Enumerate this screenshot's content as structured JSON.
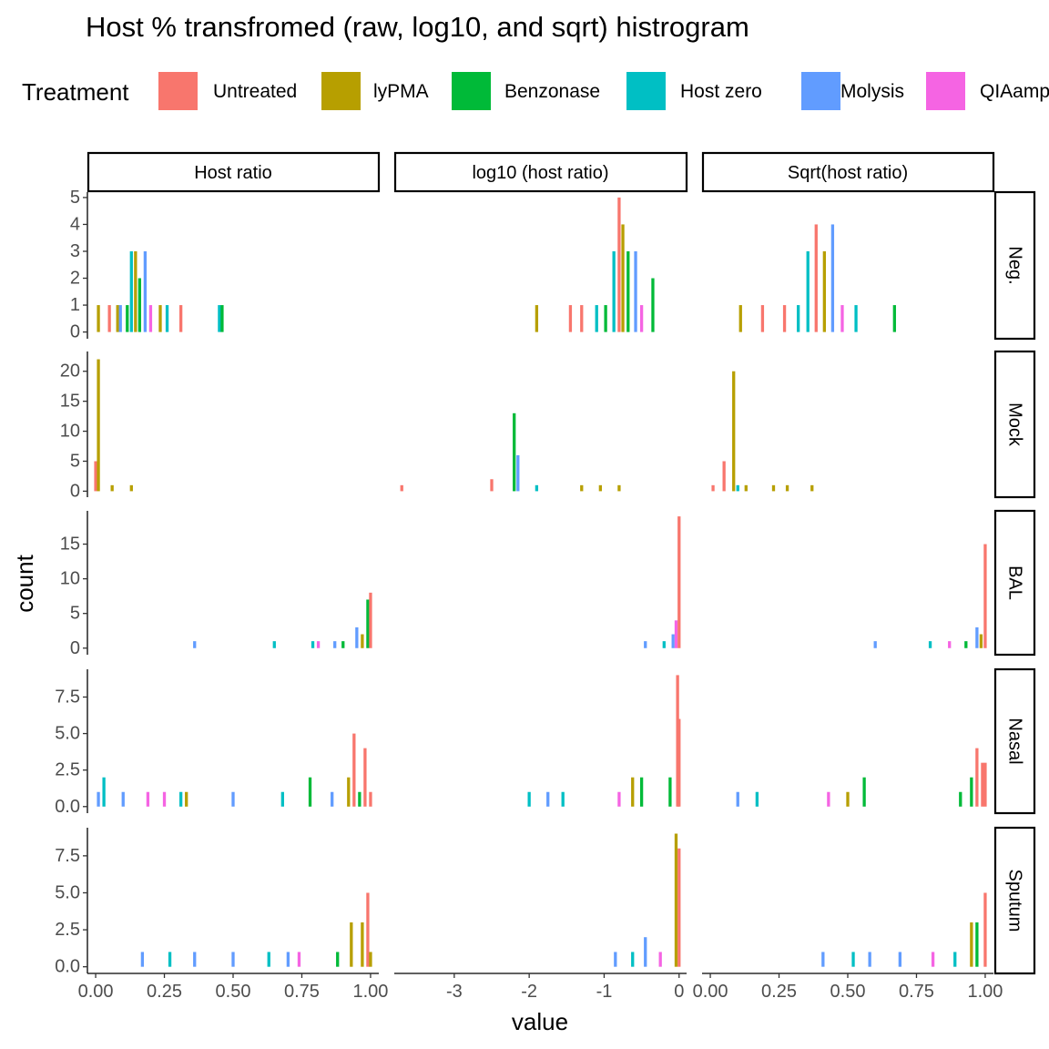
{
  "chart_data": {
    "type": "bar",
    "title": "Host % transfromed (raw, log10, and sqrt) histrogram",
    "xlabel": "value",
    "ylabel": "count",
    "legend": {
      "title": "Treatment",
      "placement": "top",
      "items": [
        {
          "name": "Untreated",
          "color": "#F8766D"
        },
        {
          "name": "lyPMA",
          "color": "#B79F00"
        },
        {
          "name": "Benzonase",
          "color": "#00BA38"
        },
        {
          "name": "Host zero",
          "color": "#00BFC4"
        },
        {
          "name": "Molysis",
          "color": "#619CFF"
        },
        {
          "name": "QIAamp",
          "color": "#F564E3"
        }
      ]
    },
    "facet_columns": [
      {
        "label": "Host ratio",
        "xlim": [
          -0.03,
          1.03
        ],
        "xticks": [
          0,
          0.25,
          0.5,
          0.75,
          1
        ],
        "xtick_labels": [
          "0.00",
          "0.25",
          "0.50",
          "0.75",
          "1.00"
        ]
      },
      {
        "label": "log10 (host ratio)",
        "xlim": [
          -3.8,
          0.1
        ],
        "xticks": [
          -3,
          -2,
          -1,
          0
        ],
        "xtick_labels": [
          "-3",
          "-2",
          "-1",
          "0"
        ]
      },
      {
        "label": "Sqrt(host ratio)",
        "xlim": [
          -0.03,
          1.03
        ],
        "xticks": [
          0,
          0.25,
          0.5,
          0.75,
          1
        ],
        "xtick_labels": [
          "0.00",
          "0.25",
          "0.50",
          "0.75",
          "1.00"
        ]
      }
    ],
    "facet_rows": [
      {
        "label": "Neg.",
        "ylim": [
          -0.25,
          5.2
        ],
        "yticks": [
          0,
          1,
          2,
          3,
          4,
          5
        ],
        "ytick_labels": [
          "0",
          "1",
          "2",
          "3",
          "4",
          "5"
        ]
      },
      {
        "label": "Mock",
        "ylim": [
          -1,
          23.3
        ],
        "yticks": [
          0,
          5,
          10,
          15,
          20
        ],
        "ytick_labels": [
          "0",
          "5",
          "10",
          "15",
          "20"
        ]
      },
      {
        "label": "BAL",
        "ylim": [
          -0.95,
          19.8
        ],
        "yticks": [
          0,
          5,
          10,
          15
        ],
        "ytick_labels": [
          "0",
          "5",
          "10",
          "15"
        ]
      },
      {
        "label": "Nasal",
        "ylim": [
          -0.45,
          9.4
        ],
        "yticks": [
          0,
          2.5,
          5,
          7.5
        ],
        "ytick_labels": [
          "0.0",
          "2.5",
          "5.0",
          "7.5"
        ]
      },
      {
        "label": "Sputum",
        "ylim": [
          -0.45,
          9.4
        ],
        "yticks": [
          0,
          2.5,
          5,
          7.5
        ],
        "ytick_labels": [
          "0.0",
          "2.5",
          "5.0",
          "7.5"
        ]
      }
    ],
    "bins": [
      {
        "row": 0,
        "col": 0,
        "series": 1,
        "x": 0.01,
        "count": 1
      },
      {
        "row": 0,
        "col": 0,
        "series": 0,
        "x": 0.05,
        "count": 1
      },
      {
        "row": 0,
        "col": 0,
        "series": 1,
        "x": 0.08,
        "count": 1
      },
      {
        "row": 0,
        "col": 0,
        "series": 4,
        "x": 0.09,
        "count": 1
      },
      {
        "row": 0,
        "col": 0,
        "series": 2,
        "x": 0.115,
        "count": 1
      },
      {
        "row": 0,
        "col": 0,
        "series": 3,
        "x": 0.13,
        "count": 3
      },
      {
        "row": 0,
        "col": 0,
        "series": 1,
        "x": 0.145,
        "count": 3
      },
      {
        "row": 0,
        "col": 0,
        "series": 2,
        "x": 0.16,
        "count": 2
      },
      {
        "row": 0,
        "col": 0,
        "series": 4,
        "x": 0.18,
        "count": 3
      },
      {
        "row": 0,
        "col": 0,
        "series": 5,
        "x": 0.2,
        "count": 1
      },
      {
        "row": 0,
        "col": 0,
        "series": 1,
        "x": 0.235,
        "count": 1
      },
      {
        "row": 0,
        "col": 0,
        "series": 3,
        "x": 0.26,
        "count": 1
      },
      {
        "row": 0,
        "col": 0,
        "series": 0,
        "x": 0.31,
        "count": 1
      },
      {
        "row": 0,
        "col": 0,
        "series": 3,
        "x": 0.45,
        "count": 1
      },
      {
        "row": 0,
        "col": 0,
        "series": 2,
        "x": 0.46,
        "count": 1
      },
      {
        "row": 0,
        "col": 1,
        "series": 1,
        "x": -1.9,
        "count": 1
      },
      {
        "row": 0,
        "col": 1,
        "series": 0,
        "x": -1.45,
        "count": 1
      },
      {
        "row": 0,
        "col": 1,
        "series": 0,
        "x": -1.3,
        "count": 1
      },
      {
        "row": 0,
        "col": 1,
        "series": 3,
        "x": -1.1,
        "count": 1
      },
      {
        "row": 0,
        "col": 1,
        "series": 2,
        "x": -0.98,
        "count": 1
      },
      {
        "row": 0,
        "col": 1,
        "series": 3,
        "x": -0.87,
        "count": 3
      },
      {
        "row": 0,
        "col": 1,
        "series": 0,
        "x": -0.8,
        "count": 5
      },
      {
        "row": 0,
        "col": 1,
        "series": 1,
        "x": -0.75,
        "count": 4
      },
      {
        "row": 0,
        "col": 1,
        "series": 2,
        "x": -0.68,
        "count": 3
      },
      {
        "row": 0,
        "col": 1,
        "series": 4,
        "x": -0.58,
        "count": 3
      },
      {
        "row": 0,
        "col": 1,
        "series": 5,
        "x": -0.5,
        "count": 1
      },
      {
        "row": 0,
        "col": 1,
        "series": 2,
        "x": -0.35,
        "count": 2
      },
      {
        "row": 0,
        "col": 2,
        "series": 1,
        "x": 0.11,
        "count": 1
      },
      {
        "row": 0,
        "col": 2,
        "series": 0,
        "x": 0.19,
        "count": 1
      },
      {
        "row": 0,
        "col": 2,
        "series": 0,
        "x": 0.27,
        "count": 1
      },
      {
        "row": 0,
        "col": 2,
        "series": 3,
        "x": 0.32,
        "count": 1
      },
      {
        "row": 0,
        "col": 2,
        "series": 3,
        "x": 0.355,
        "count": 3
      },
      {
        "row": 0,
        "col": 2,
        "series": 0,
        "x": 0.385,
        "count": 4
      },
      {
        "row": 0,
        "col": 2,
        "series": 1,
        "x": 0.415,
        "count": 3
      },
      {
        "row": 0,
        "col": 2,
        "series": 4,
        "x": 0.445,
        "count": 4
      },
      {
        "row": 0,
        "col": 2,
        "series": 5,
        "x": 0.48,
        "count": 1
      },
      {
        "row": 0,
        "col": 2,
        "series": 3,
        "x": 0.53,
        "count": 1
      },
      {
        "row": 0,
        "col": 2,
        "series": 2,
        "x": 0.67,
        "count": 1
      },
      {
        "row": 1,
        "col": 0,
        "series": 0,
        "x": 0.0,
        "count": 5
      },
      {
        "row": 1,
        "col": 0,
        "series": 1,
        "x": 0.01,
        "count": 22
      },
      {
        "row": 1,
        "col": 0,
        "series": 1,
        "x": 0.06,
        "count": 1
      },
      {
        "row": 1,
        "col": 0,
        "series": 1,
        "x": 0.13,
        "count": 1
      },
      {
        "row": 1,
        "col": 1,
        "series": 0,
        "x": -3.7,
        "count": 1
      },
      {
        "row": 1,
        "col": 1,
        "series": 0,
        "x": -2.5,
        "count": 2
      },
      {
        "row": 1,
        "col": 1,
        "series": 2,
        "x": -2.2,
        "count": 13
      },
      {
        "row": 1,
        "col": 1,
        "series": 4,
        "x": -2.15,
        "count": 6
      },
      {
        "row": 1,
        "col": 1,
        "series": 3,
        "x": -1.9,
        "count": 1
      },
      {
        "row": 1,
        "col": 1,
        "series": 1,
        "x": -1.3,
        "count": 1
      },
      {
        "row": 1,
        "col": 1,
        "series": 1,
        "x": -1.05,
        "count": 1
      },
      {
        "row": 1,
        "col": 1,
        "series": 1,
        "x": -0.8,
        "count": 1
      },
      {
        "row": 1,
        "col": 2,
        "series": 0,
        "x": 0.01,
        "count": 1
      },
      {
        "row": 1,
        "col": 2,
        "series": 0,
        "x": 0.05,
        "count": 5
      },
      {
        "row": 1,
        "col": 2,
        "series": 1,
        "x": 0.085,
        "count": 20
      },
      {
        "row": 1,
        "col": 2,
        "series": 3,
        "x": 0.1,
        "count": 1
      },
      {
        "row": 1,
        "col": 2,
        "series": 1,
        "x": 0.13,
        "count": 1
      },
      {
        "row": 1,
        "col": 2,
        "series": 1,
        "x": 0.23,
        "count": 1
      },
      {
        "row": 1,
        "col": 2,
        "series": 1,
        "x": 0.28,
        "count": 1
      },
      {
        "row": 1,
        "col": 2,
        "series": 1,
        "x": 0.37,
        "count": 1
      },
      {
        "row": 2,
        "col": 0,
        "series": 4,
        "x": 0.36,
        "count": 1
      },
      {
        "row": 2,
        "col": 0,
        "series": 3,
        "x": 0.65,
        "count": 1
      },
      {
        "row": 2,
        "col": 0,
        "series": 3,
        "x": 0.79,
        "count": 1
      },
      {
        "row": 2,
        "col": 0,
        "series": 5,
        "x": 0.81,
        "count": 1
      },
      {
        "row": 2,
        "col": 0,
        "series": 4,
        "x": 0.87,
        "count": 1
      },
      {
        "row": 2,
        "col": 0,
        "series": 2,
        "x": 0.9,
        "count": 1
      },
      {
        "row": 2,
        "col": 0,
        "series": 4,
        "x": 0.95,
        "count": 3
      },
      {
        "row": 2,
        "col": 0,
        "series": 1,
        "x": 0.97,
        "count": 2
      },
      {
        "row": 2,
        "col": 0,
        "series": 2,
        "x": 0.99,
        "count": 7
      },
      {
        "row": 2,
        "col": 0,
        "series": 0,
        "x": 1.0,
        "count": 8
      },
      {
        "row": 2,
        "col": 1,
        "series": 4,
        "x": -0.45,
        "count": 1
      },
      {
        "row": 2,
        "col": 1,
        "series": 3,
        "x": -0.2,
        "count": 1
      },
      {
        "row": 2,
        "col": 1,
        "series": 4,
        "x": -0.08,
        "count": 2
      },
      {
        "row": 2,
        "col": 1,
        "series": 5,
        "x": -0.04,
        "count": 4
      },
      {
        "row": 2,
        "col": 1,
        "series": 0,
        "x": 0.0,
        "count": 19
      },
      {
        "row": 2,
        "col": 2,
        "series": 4,
        "x": 0.6,
        "count": 1
      },
      {
        "row": 2,
        "col": 2,
        "series": 3,
        "x": 0.8,
        "count": 1
      },
      {
        "row": 2,
        "col": 2,
        "series": 5,
        "x": 0.87,
        "count": 1
      },
      {
        "row": 2,
        "col": 2,
        "series": 2,
        "x": 0.93,
        "count": 1
      },
      {
        "row": 2,
        "col": 2,
        "series": 4,
        "x": 0.97,
        "count": 3
      },
      {
        "row": 2,
        "col": 2,
        "series": 1,
        "x": 0.985,
        "count": 2
      },
      {
        "row": 2,
        "col": 2,
        "series": 0,
        "x": 1.0,
        "count": 15
      },
      {
        "row": 3,
        "col": 0,
        "series": 4,
        "x": 0.01,
        "count": 1
      },
      {
        "row": 3,
        "col": 0,
        "series": 3,
        "x": 0.03,
        "count": 2
      },
      {
        "row": 3,
        "col": 0,
        "series": 4,
        "x": 0.1,
        "count": 1
      },
      {
        "row": 3,
        "col": 0,
        "series": 5,
        "x": 0.19,
        "count": 1
      },
      {
        "row": 3,
        "col": 0,
        "series": 5,
        "x": 0.25,
        "count": 1
      },
      {
        "row": 3,
        "col": 0,
        "series": 3,
        "x": 0.31,
        "count": 1
      },
      {
        "row": 3,
        "col": 0,
        "series": 1,
        "x": 0.33,
        "count": 1
      },
      {
        "row": 3,
        "col": 0,
        "series": 4,
        "x": 0.5,
        "count": 1
      },
      {
        "row": 3,
        "col": 0,
        "series": 3,
        "x": 0.68,
        "count": 1
      },
      {
        "row": 3,
        "col": 0,
        "series": 2,
        "x": 0.78,
        "count": 2
      },
      {
        "row": 3,
        "col": 0,
        "series": 4,
        "x": 0.86,
        "count": 1
      },
      {
        "row": 3,
        "col": 0,
        "series": 1,
        "x": 0.92,
        "count": 2
      },
      {
        "row": 3,
        "col": 0,
        "series": 0,
        "x": 0.94,
        "count": 5
      },
      {
        "row": 3,
        "col": 0,
        "series": 2,
        "x": 0.96,
        "count": 1
      },
      {
        "row": 3,
        "col": 0,
        "series": 0,
        "x": 0.98,
        "count": 4
      },
      {
        "row": 3,
        "col": 0,
        "series": 0,
        "x": 1.0,
        "count": 1
      },
      {
        "row": 3,
        "col": 1,
        "series": 3,
        "x": -2.0,
        "count": 1
      },
      {
        "row": 3,
        "col": 1,
        "series": 4,
        "x": -1.75,
        "count": 1
      },
      {
        "row": 3,
        "col": 1,
        "series": 3,
        "x": -1.55,
        "count": 1
      },
      {
        "row": 3,
        "col": 1,
        "series": 5,
        "x": -0.8,
        "count": 1
      },
      {
        "row": 3,
        "col": 1,
        "series": 1,
        "x": -0.62,
        "count": 2
      },
      {
        "row": 3,
        "col": 1,
        "series": 2,
        "x": -0.5,
        "count": 2
      },
      {
        "row": 3,
        "col": 1,
        "series": 2,
        "x": -0.12,
        "count": 2
      },
      {
        "row": 3,
        "col": 1,
        "series": 0,
        "x": -0.02,
        "count": 9
      },
      {
        "row": 3,
        "col": 1,
        "series": 0,
        "x": 0.0,
        "count": 6
      },
      {
        "row": 3,
        "col": 2,
        "series": 4,
        "x": 0.1,
        "count": 1
      },
      {
        "row": 3,
        "col": 2,
        "series": 3,
        "x": 0.17,
        "count": 1
      },
      {
        "row": 3,
        "col": 2,
        "series": 5,
        "x": 0.43,
        "count": 1
      },
      {
        "row": 3,
        "col": 2,
        "series": 1,
        "x": 0.5,
        "count": 1
      },
      {
        "row": 3,
        "col": 2,
        "series": 2,
        "x": 0.56,
        "count": 2
      },
      {
        "row": 3,
        "col": 2,
        "series": 2,
        "x": 0.91,
        "count": 1
      },
      {
        "row": 3,
        "col": 2,
        "series": 2,
        "x": 0.95,
        "count": 2
      },
      {
        "row": 3,
        "col": 2,
        "series": 0,
        "x": 0.97,
        "count": 4
      },
      {
        "row": 3,
        "col": 2,
        "series": 0,
        "x": 0.99,
        "count": 3
      },
      {
        "row": 3,
        "col": 2,
        "series": 0,
        "x": 1.0,
        "count": 3
      },
      {
        "row": 4,
        "col": 0,
        "series": 4,
        "x": 0.17,
        "count": 1
      },
      {
        "row": 4,
        "col": 0,
        "series": 3,
        "x": 0.27,
        "count": 1
      },
      {
        "row": 4,
        "col": 0,
        "series": 4,
        "x": 0.36,
        "count": 1
      },
      {
        "row": 4,
        "col": 0,
        "series": 4,
        "x": 0.5,
        "count": 1
      },
      {
        "row": 4,
        "col": 0,
        "series": 3,
        "x": 0.63,
        "count": 1
      },
      {
        "row": 4,
        "col": 0,
        "series": 4,
        "x": 0.7,
        "count": 1
      },
      {
        "row": 4,
        "col": 0,
        "series": 5,
        "x": 0.74,
        "count": 1
      },
      {
        "row": 4,
        "col": 0,
        "series": 2,
        "x": 0.88,
        "count": 1
      },
      {
        "row": 4,
        "col": 0,
        "series": 1,
        "x": 0.93,
        "count": 3
      },
      {
        "row": 4,
        "col": 0,
        "series": 1,
        "x": 0.97,
        "count": 3
      },
      {
        "row": 4,
        "col": 0,
        "series": 0,
        "x": 0.99,
        "count": 5
      },
      {
        "row": 4,
        "col": 0,
        "series": 1,
        "x": 1.0,
        "count": 1
      },
      {
        "row": 4,
        "col": 1,
        "series": 4,
        "x": -0.85,
        "count": 1
      },
      {
        "row": 4,
        "col": 1,
        "series": 3,
        "x": -0.62,
        "count": 1
      },
      {
        "row": 4,
        "col": 1,
        "series": 4,
        "x": -0.45,
        "count": 2
      },
      {
        "row": 4,
        "col": 1,
        "series": 5,
        "x": -0.25,
        "count": 1
      },
      {
        "row": 4,
        "col": 1,
        "series": 1,
        "x": -0.04,
        "count": 9
      },
      {
        "row": 4,
        "col": 1,
        "series": 0,
        "x": 0.0,
        "count": 8
      },
      {
        "row": 4,
        "col": 2,
        "series": 4,
        "x": 0.41,
        "count": 1
      },
      {
        "row": 4,
        "col": 2,
        "series": 3,
        "x": 0.52,
        "count": 1
      },
      {
        "row": 4,
        "col": 2,
        "series": 4,
        "x": 0.58,
        "count": 1
      },
      {
        "row": 4,
        "col": 2,
        "series": 4,
        "x": 0.69,
        "count": 1
      },
      {
        "row": 4,
        "col": 2,
        "series": 5,
        "x": 0.81,
        "count": 1
      },
      {
        "row": 4,
        "col": 2,
        "series": 3,
        "x": 0.89,
        "count": 1
      },
      {
        "row": 4,
        "col": 2,
        "series": 1,
        "x": 0.95,
        "count": 3
      },
      {
        "row": 4,
        "col": 2,
        "series": 2,
        "x": 0.97,
        "count": 3
      },
      {
        "row": 4,
        "col": 2,
        "series": 0,
        "x": 1.0,
        "count": 5
      }
    ]
  }
}
